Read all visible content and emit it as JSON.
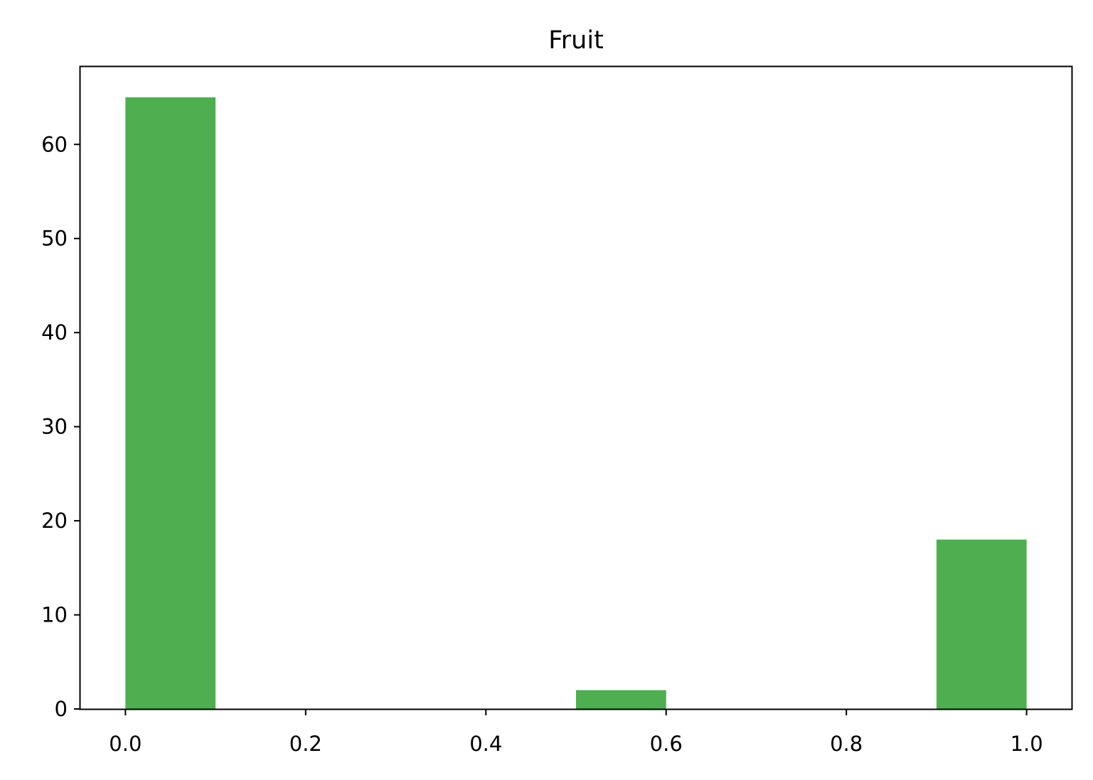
{
  "chart_data": {
    "type": "bar",
    "title": "Fruit",
    "xlabel": "",
    "ylabel": "",
    "bins": [
      {
        "x0": 0.0,
        "x1": 0.1,
        "count": 65
      },
      {
        "x0": 0.1,
        "x1": 0.2,
        "count": 0
      },
      {
        "x0": 0.2,
        "x1": 0.3,
        "count": 0
      },
      {
        "x0": 0.3,
        "x1": 0.4,
        "count": 0
      },
      {
        "x0": 0.4,
        "x1": 0.5,
        "count": 0
      },
      {
        "x0": 0.5,
        "x1": 0.6,
        "count": 2
      },
      {
        "x0": 0.6,
        "x1": 0.7,
        "count": 0
      },
      {
        "x0": 0.7,
        "x1": 0.8,
        "count": 0
      },
      {
        "x0": 0.8,
        "x1": 0.9,
        "count": 0
      },
      {
        "x0": 0.9,
        "x1": 1.0,
        "count": 18
      }
    ],
    "xlim": [
      -0.05,
      1.05
    ],
    "ylim": [
      0,
      68.25
    ],
    "x_ticks": [
      "0.0",
      "0.2",
      "0.4",
      "0.6",
      "0.8",
      "1.0"
    ],
    "y_ticks": [
      "0",
      "10",
      "20",
      "30",
      "40",
      "50",
      "60"
    ],
    "grid": false,
    "legend": "none",
    "bar_color": "#4daf4f"
  }
}
